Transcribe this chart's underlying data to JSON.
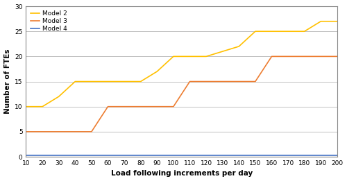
{
  "x": [
    10,
    20,
    30,
    40,
    50,
    60,
    70,
    80,
    90,
    100,
    110,
    120,
    130,
    140,
    150,
    160,
    170,
    180,
    190,
    200
  ],
  "model2": [
    10,
    10,
    12,
    15,
    15,
    15,
    15,
    15,
    17,
    20,
    20,
    20,
    21,
    22,
    25,
    25,
    25,
    25,
    27,
    27
  ],
  "model3": [
    5,
    5,
    5,
    5,
    5,
    10,
    10,
    10,
    10,
    10,
    15,
    15,
    15,
    15,
    15,
    20,
    20,
    20,
    20,
    20
  ],
  "model4": [
    0.3,
    0.3,
    0.3,
    0.3,
    0.3,
    0.3,
    0.3,
    0.3,
    0.3,
    0.3,
    0.3,
    0.3,
    0.3,
    0.3,
    0.3,
    0.3,
    0.3,
    0.3,
    0.3,
    0.3
  ],
  "model2_color": "#FFC000",
  "model3_color": "#ED7D31",
  "model4_color": "#4472C4",
  "xlabel": "Load following increments per day",
  "ylabel": "Number of FTEs",
  "ylim": [
    0,
    30
  ],
  "xlim": [
    10,
    200
  ],
  "legend_labels": [
    "Model 2",
    "Model 3",
    "Model 4"
  ],
  "xticks": [
    10,
    20,
    30,
    40,
    50,
    60,
    70,
    80,
    90,
    100,
    110,
    120,
    130,
    140,
    150,
    160,
    170,
    180,
    190,
    200
  ],
  "yticks": [
    0,
    5,
    10,
    15,
    20,
    25,
    30
  ],
  "grid_color": "#C0C0C0",
  "linewidth": 1.2,
  "bg_color": "#FFFFFF"
}
